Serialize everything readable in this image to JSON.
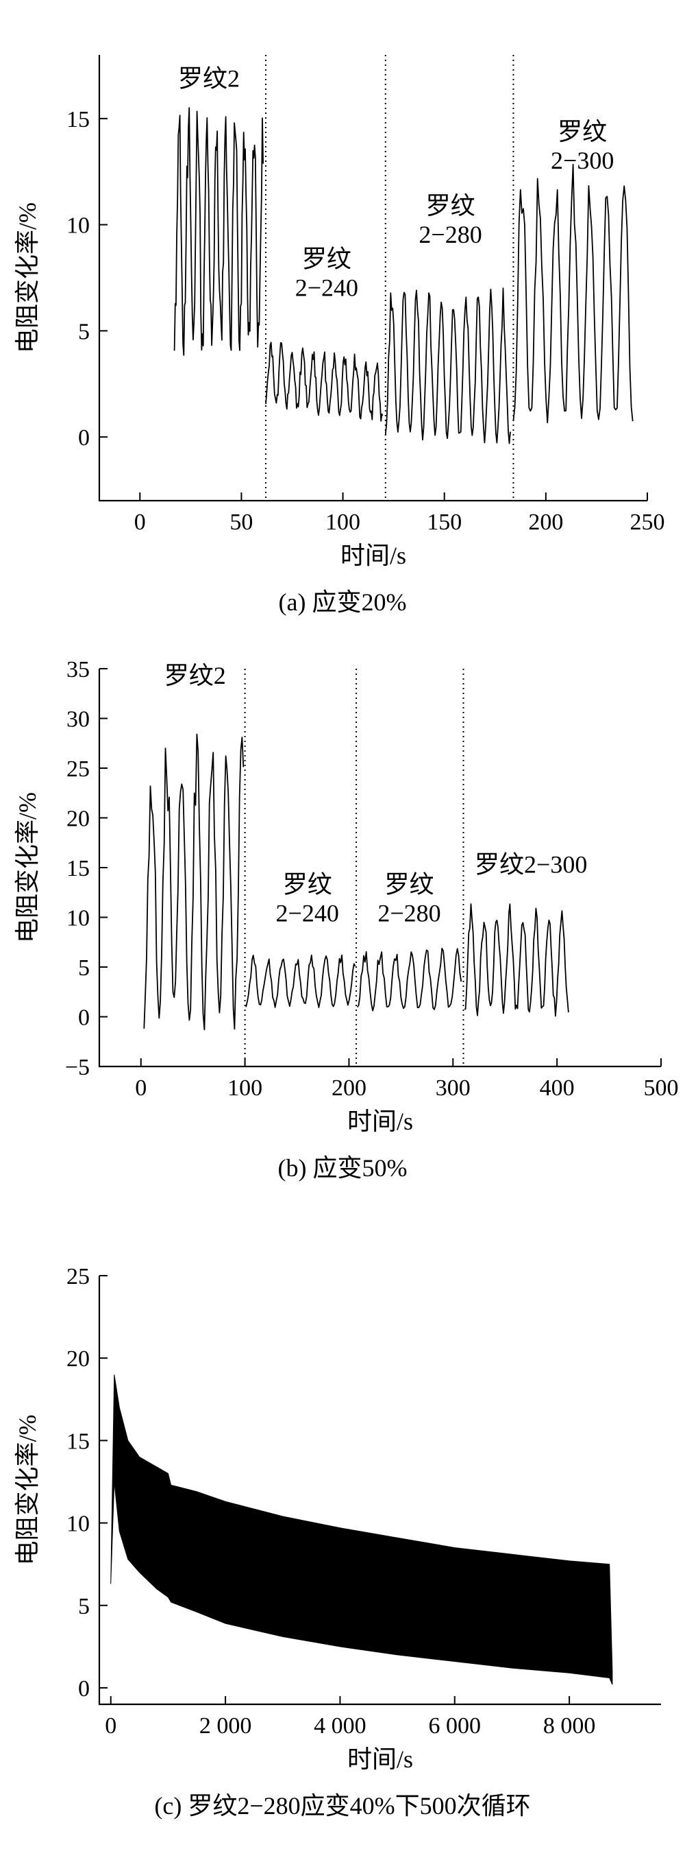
{
  "chart_data": [
    {
      "type": "line",
      "caption": "(a) 应变20%",
      "xlabel": "时间/s",
      "ylabel": "电阻变化率/%",
      "xlim": [
        -20,
        250
      ],
      "ylim": [
        -3,
        18
      ],
      "xticks": [
        0,
        50,
        100,
        150,
        200,
        250
      ],
      "xtick_labels": [
        "0",
        "50",
        "100",
        "150",
        "200",
        "250"
      ],
      "yticks": [
        0,
        5,
        10,
        15
      ],
      "ytick_labels": [
        "0",
        "5",
        "10",
        "15"
      ],
      "dividers": [
        62,
        121,
        184
      ],
      "regions": [
        {
          "lines": [
            "罗纹2"
          ],
          "label_x": 34,
          "label_y": 16.5
        },
        {
          "lines": [
            "罗纹",
            "2−240"
          ],
          "label_x": 92,
          "label_y": 8.0
        },
        {
          "lines": [
            "罗纹",
            "2−280"
          ],
          "label_x": 153,
          "label_y": 10.5
        },
        {
          "lines": [
            "罗纹",
            "2−300"
          ],
          "label_x": 218,
          "label_y": 14.0
        }
      ],
      "series": [
        {
          "segments": [
            {
              "x_start": 17,
              "x_end": 61,
              "period": 4.6,
              "low": 4.5,
              "high": 15.6,
              "jitter": 1.2,
              "decay": 0
            },
            {
              "x_start": 62,
              "x_end": 120,
              "period": 5.2,
              "low": 1.7,
              "high": 4.6,
              "jitter": 0.35,
              "decay": 0.9
            },
            {
              "x_start": 121,
              "x_end": 183,
              "period": 6.1,
              "low": 0.2,
              "high": 7.4,
              "jitter": 0.25,
              "decay": 0.4
            },
            {
              "x_start": 184,
              "x_end": 243,
              "period": 8.4,
              "low": 0.9,
              "high": 12.8,
              "jitter": 0.4,
              "decay": 0
            }
          ]
        }
      ]
    },
    {
      "type": "line",
      "caption": "(b) 应变50%",
      "xlabel": "时间/s",
      "ylabel": "电阻变化率/%",
      "xlim": [
        -40,
        500
      ],
      "ylim": [
        -5,
        35
      ],
      "xticks": [
        0,
        100,
        200,
        300,
        400,
        500
      ],
      "xtick_labels": [
        "0",
        "100",
        "200",
        "300",
        "400",
        "500"
      ],
      "yticks": [
        -5,
        0,
        5,
        10,
        15,
        20,
        25,
        30,
        35
      ],
      "ytick_labels": [
        "−5",
        "0",
        "5",
        "10",
        "15",
        "20",
        "25",
        "30",
        "35"
      ],
      "dividers": [
        100,
        207,
        310
      ],
      "regions": [
        {
          "lines": [
            "罗纹2"
          ],
          "label_x": 52,
          "label_y": 33.5
        },
        {
          "lines": [
            "罗纹",
            "2−240"
          ],
          "label_x": 160,
          "label_y": 12.5
        },
        {
          "lines": [
            "罗纹",
            "2−280"
          ],
          "label_x": 258,
          "label_y": 12.5
        },
        {
          "lines": [
            "罗纹2−300"
          ],
          "label_x": 375,
          "label_y": 14.5
        }
      ],
      "series": [
        {
          "segments": [
            {
              "x_start": 3,
              "x_end": 99,
              "period": 14.5,
              "low": 0.5,
              "high": 29,
              "jitter": 2.0,
              "decay": 0
            },
            {
              "x_start": 101,
              "x_end": 206,
              "period": 14.0,
              "low": 1.2,
              "high": 6.3,
              "jitter": 0.3,
              "decay": 0
            },
            {
              "x_start": 208,
              "x_end": 309,
              "period": 14.8,
              "low": 0.8,
              "high": 7.0,
              "jitter": 0.3,
              "decay": 0
            },
            {
              "x_start": 311,
              "x_end": 412,
              "period": 12.5,
              "low": 0.6,
              "high": 11.5,
              "jitter": 0.6,
              "decay": 0
            }
          ]
        }
      ]
    },
    {
      "type": "area",
      "caption": "(c) 罗纹2−280应变40%下500次循环",
      "xlabel": "时间/s",
      "ylabel": "电阻变化率/%",
      "xlim": [
        -200,
        9600
      ],
      "ylim": [
        -1,
        25
      ],
      "xticks": [
        0,
        2000,
        4000,
        6000,
        8000
      ],
      "xtick_labels": [
        "0",
        "2 000",
        "4 000",
        "6 000",
        "8 000"
      ],
      "yticks": [
        0,
        5,
        10,
        15,
        20,
        25
      ],
      "ytick_labels": [
        "0",
        "5",
        "10",
        "15",
        "20",
        "25"
      ],
      "dividers": [],
      "regions": [],
      "envelope": {
        "x": [
          0,
          60,
          150,
          300,
          500,
          800,
          1000,
          1050,
          1500,
          2000,
          3000,
          4000,
          5000,
          6000,
          7000,
          8000,
          8700,
          8750
        ],
        "upper": [
          6.3,
          19.0,
          17.0,
          15.0,
          14.0,
          13.4,
          13.0,
          12.3,
          11.9,
          11.3,
          10.4,
          9.7,
          9.1,
          8.5,
          8.1,
          7.7,
          7.5,
          1.0
        ],
        "lower": [
          6.3,
          12.5,
          9.5,
          7.8,
          7.0,
          6.0,
          5.5,
          5.2,
          4.6,
          3.9,
          3.1,
          2.5,
          2.0,
          1.6,
          1.2,
          0.9,
          0.6,
          0.2
        ]
      }
    }
  ]
}
